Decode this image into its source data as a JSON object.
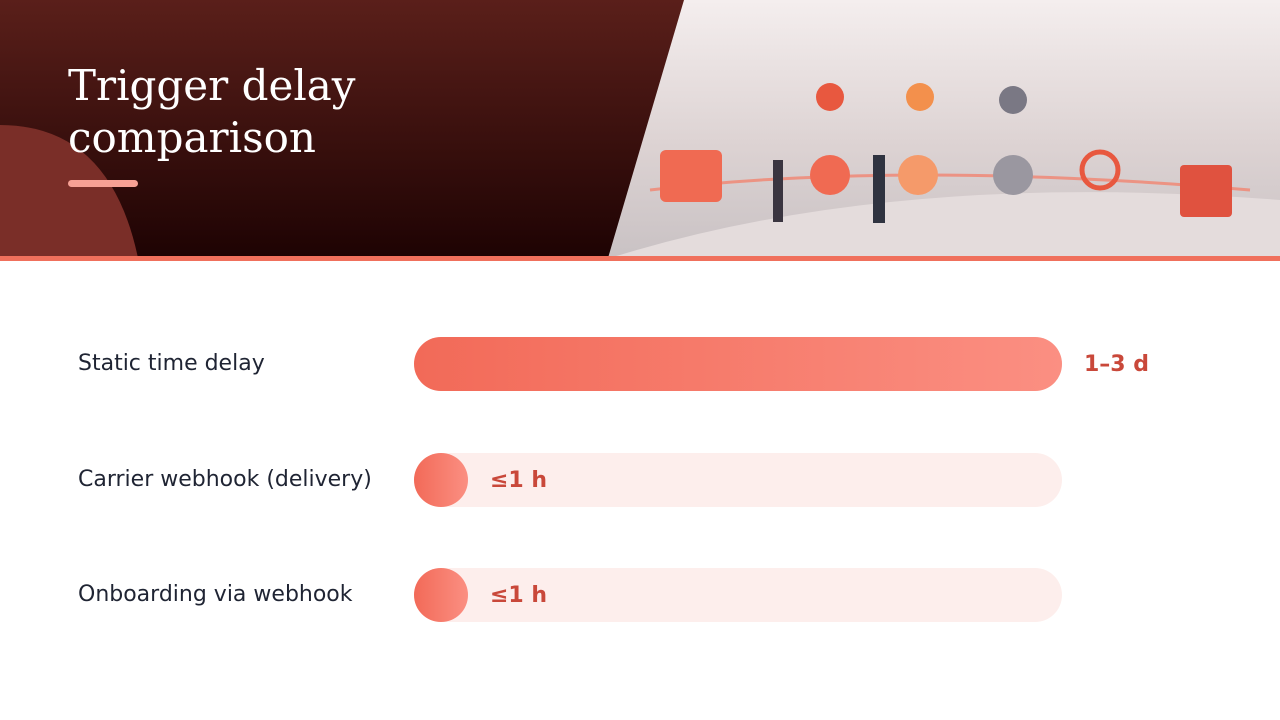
{
  "chart_data": {
    "type": "bar",
    "orientation": "horizontal",
    "title": "Trigger delay comparison",
    "categories": [
      "Static time delay",
      "Carrier webhook (delivery)",
      "Onboarding via webhook"
    ],
    "values": [
      72,
      1,
      1
    ],
    "value_labels": [
      "1–3 d",
      "≤1 h",
      "≤1 h"
    ],
    "xlim": [
      0,
      72
    ],
    "color": "#f26a58",
    "track_color": "#fdeeec"
  }
}
